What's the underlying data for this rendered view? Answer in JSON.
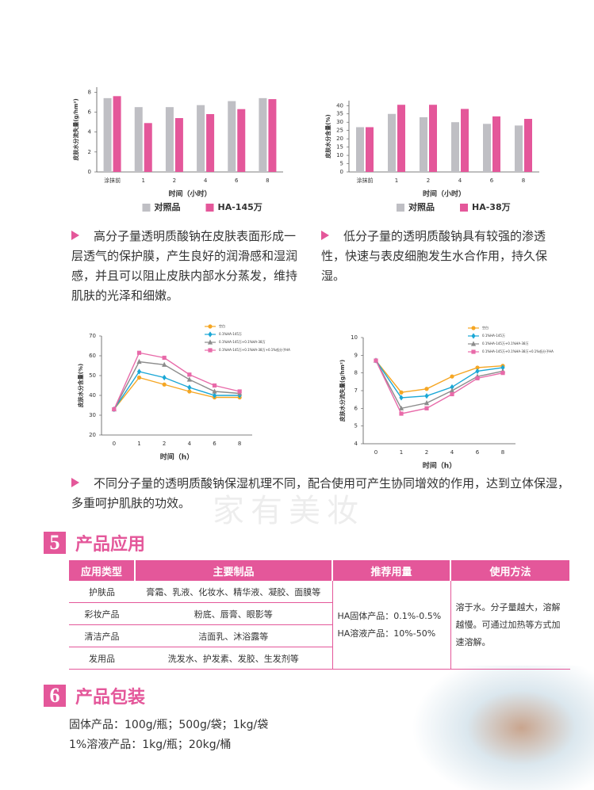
{
  "chart_data": [
    {
      "type": "bar",
      "y_label": "皮肤水分流失量(g/hm²)",
      "x_label": "时间（小时）",
      "categories": [
        "涂抹前",
        "1",
        "2",
        "4",
        "6",
        "8"
      ],
      "series": [
        {
          "name": "对照品",
          "color": "#bfbfc4",
          "values": [
            7.4,
            6.5,
            6.5,
            6.7,
            7.1,
            7.4
          ]
        },
        {
          "name": "HA-145万",
          "color": "#e4579a",
          "values": [
            7.6,
            4.9,
            5.4,
            5.8,
            6.3,
            7.3
          ]
        }
      ],
      "ylim": [
        0,
        8.5
      ],
      "yticks": [
        0,
        2,
        4,
        6,
        8
      ],
      "legend": "bottom"
    },
    {
      "type": "bar",
      "y_label": "皮肤水分含量(%)",
      "x_label": "时间（小时）",
      "categories": [
        "涂抹前",
        "1",
        "2",
        "4",
        "6",
        "8"
      ],
      "series": [
        {
          "name": "对照品",
          "color": "#bfbfc4",
          "values": [
            27,
            35,
            33,
            30,
            29,
            28
          ]
        },
        {
          "name": "HA-38万",
          "color": "#e4579a",
          "values": [
            27,
            40.5,
            40.5,
            38,
            33.5,
            32
          ]
        }
      ],
      "ylim": [
        0,
        43
      ],
      "yticks": [
        0,
        5,
        10,
        15,
        20,
        25,
        30,
        35,
        40
      ],
      "legend": "bottom"
    },
    {
      "type": "line",
      "y_label": "皮肤水分含量(%)",
      "x_label": "时间（h）",
      "categories": [
        "0",
        "1",
        "2",
        "4",
        "6",
        "8"
      ],
      "series": [
        {
          "name": "空白",
          "color": "#f5a623",
          "values": [
            33,
            49,
            45.5,
            42,
            39,
            39
          ]
        },
        {
          "name": "0.1%HA-145万",
          "color": "#1aa7d6",
          "values": [
            33,
            52,
            49,
            44,
            40,
            40
          ]
        },
        {
          "name": "0.1%HA-145万+0.1%HA-38万",
          "color": "#8c8c8c",
          "values": [
            33,
            57,
            55.5,
            48,
            42,
            41
          ]
        },
        {
          "name": "0.1%HA-145万+0.1%HA-38万+0.1%低分子HA",
          "color": "#e86aa9",
          "values": [
            33,
            61.5,
            59,
            50.5,
            45,
            42
          ]
        }
      ],
      "ylim": [
        20,
        70
      ],
      "yticks": [
        20,
        30,
        40,
        50,
        60,
        70
      ],
      "legend": "upper right"
    },
    {
      "type": "line",
      "y_label": "皮肤水分流失量(g/hm²)",
      "x_label": "时间（h）",
      "categories": [
        "0",
        "1",
        "2",
        "4",
        "6",
        "8"
      ],
      "series": [
        {
          "name": "空白",
          "color": "#f5a623",
          "values": [
            8.7,
            6.9,
            7.1,
            7.8,
            8.3,
            8.4
          ]
        },
        {
          "name": "0.1%HA-145万",
          "color": "#1aa7d6",
          "values": [
            8.7,
            6.6,
            6.7,
            7.2,
            8.1,
            8.3
          ]
        },
        {
          "name": "0.1%HA-145万+0.1%HA-38万",
          "color": "#8c8c8c",
          "values": [
            8.7,
            6.0,
            6.3,
            7.0,
            7.8,
            8.1
          ]
        },
        {
          "name": "0.1%HA-145万+0.1%HA-38万+0.1%低分子HA",
          "color": "#e86aa9",
          "values": [
            8.7,
            5.7,
            6.0,
            6.8,
            7.7,
            8.0
          ]
        }
      ],
      "ylim": [
        4,
        10
      ],
      "yticks": [
        4,
        5,
        6,
        7,
        8,
        9,
        10
      ],
      "legend": "upper right"
    }
  ],
  "paragraphs": [
    "高分子量透明质酸钠在皮肤表面形成一层透气的保护膜，产生良好的润滑感和湿润感，并且可以阻止皮肤内部水分蒸发，维持肌肤的光泽和细嫩。",
    "低分子量的透明质酸钠具有较强的渗透性，快速与表皮细胞发生水合作用，持久保湿。",
    "不同分子量的透明质酸钠保湿机理不同，配合使用可产生协同增效的作用，达到立体保湿，多重呵护肌肤的功效。"
  ],
  "watermark": "家有美妆",
  "sections": [
    {
      "number": "5",
      "title": "产品应用"
    },
    {
      "number": "6",
      "title": "产品包装"
    }
  ],
  "table": {
    "header": [
      "应用类型",
      "主要制品",
      "推荐用量",
      "使用方法"
    ],
    "rows": [
      [
        "护肤品",
        "膏霜、乳液、化妆水、精华液、凝胶、面膜等"
      ],
      [
        "彩妆产品",
        "粉底、唇膏、眼影等"
      ],
      [
        "清洁产品",
        "洁面乳、沐浴露等"
      ],
      [
        "发用品",
        "洗发水、护发素、发胶、生发剂等"
      ]
    ],
    "dosage": [
      "HA固体产品：0.1%-0.5%",
      "HA溶液产品：10%-50%"
    ],
    "method": "溶于水。分子量越大，溶解越慢。可通过加热等方式加速溶解。"
  },
  "packaging": [
    "固体产品：100g/瓶；500g/袋；1kg/袋",
    "1%溶液产品：1kg/瓶；20kg/桶"
  ]
}
